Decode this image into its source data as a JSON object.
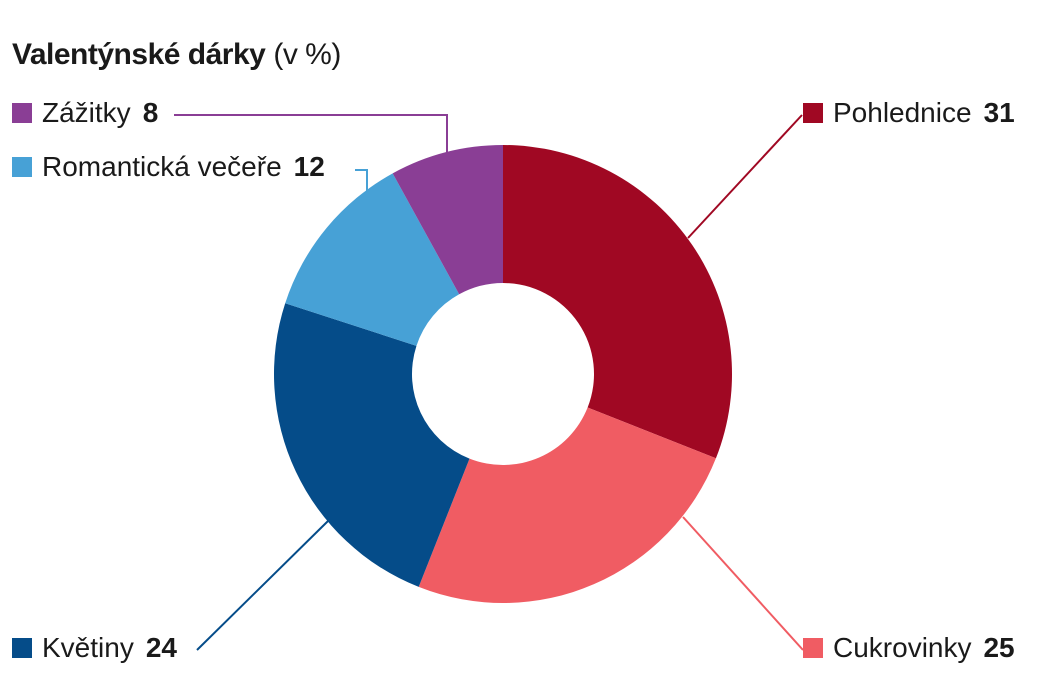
{
  "title": "Valentýnské dárky",
  "unit": "(v %)",
  "chart_data": {
    "type": "pie",
    "variant": "donut",
    "title": "Valentýnské dárky",
    "unit": "(v %)",
    "slices": [
      {
        "label": "Pohlednice",
        "value": 31,
        "color": "#a00823"
      },
      {
        "label": "Cukrovinky",
        "value": 25,
        "color": "#f05c63"
      },
      {
        "label": "Květiny",
        "value": 24,
        "color": "#054c89"
      },
      {
        "label": "Romantická večeře",
        "value": 12,
        "color": "#47a1d6"
      },
      {
        "label": "Zážitky",
        "value": 8,
        "color": "#8a3e95"
      }
    ]
  }
}
